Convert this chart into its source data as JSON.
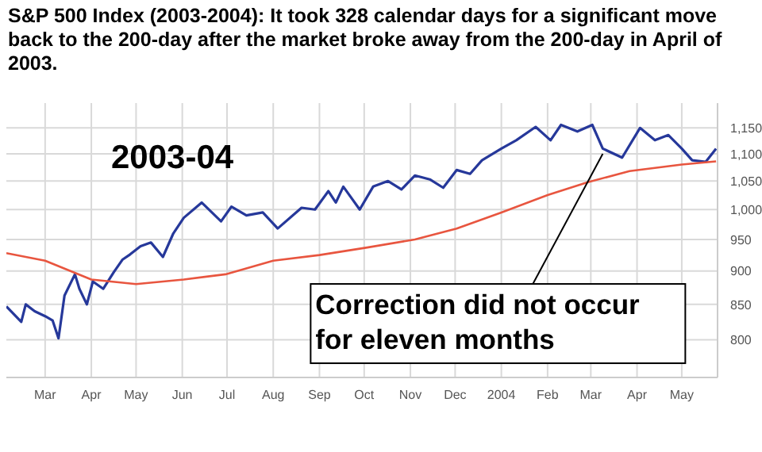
{
  "chart_data": {
    "type": "line",
    "title": "S&P 500 Index (2003-2004):  It took 328 calendar days for a significant move back to the 200-day after the market broke away from the 200-day in April of 2003.",
    "annotations": [
      "2003-04",
      {
        "text": "Correction did not occur for eleven months",
        "x": "2004-03-09",
        "y": 1100
      }
    ],
    "series": [
      {
        "color": "#26389a",
        "x": [
          "2003-02-03",
          "2003-02-13",
          "2003-02-16",
          "2003-02-22",
          "2003-03-01",
          "2003-03-06",
          "2003-03-10",
          "2003-03-14",
          "2003-03-21",
          "2003-03-24",
          "2003-03-29",
          "2003-04-02",
          "2003-04-09",
          "2003-04-16",
          "2003-04-22",
          "2003-04-27",
          "2003-05-04",
          "2003-05-11",
          "2003-05-19",
          "2003-05-26",
          "2003-06-02",
          "2003-06-14",
          "2003-06-27",
          "2003-07-04",
          "2003-07-14",
          "2003-07-25",
          "2003-08-04",
          "2003-08-20",
          "2003-08-29",
          "2003-09-07",
          "2003-09-12",
          "2003-09-17",
          "2003-09-28",
          "2003-10-07",
          "2003-10-17",
          "2003-10-26",
          "2003-11-04",
          "2003-11-14",
          "2003-11-23",
          "2003-12-02",
          "2003-12-11",
          "2003-12-19",
          "2004-01-01",
          "2004-01-11",
          "2004-01-24",
          "2004-02-03",
          "2004-02-10",
          "2004-02-21",
          "2004-03-02",
          "2004-03-09",
          "2004-03-22",
          "2004-04-03",
          "2004-04-13",
          "2004-04-22",
          "2004-05-01",
          "2004-05-08",
          "2004-05-17",
          "2004-05-24"
        ],
        "values": [
          847,
          825,
          850,
          840,
          833,
          827,
          802,
          863,
          895,
          873,
          850,
          884,
          873,
          898,
          918,
          926,
          939,
          945,
          922,
          960,
          986,
          1012,
          980,
          1005,
          990,
          995,
          968,
          1003,
          1000,
          1032,
          1012,
          1040,
          1000,
          1040,
          1050,
          1035,
          1060,
          1053,
          1038,
          1070,
          1063,
          1088,
          1110,
          1126,
          1152,
          1126,
          1156,
          1143,
          1156,
          1110,
          1093,
          1150,
          1126,
          1136,
          1110,
          1088,
          1085,
          1110
        ]
      },
      {
        "color": "#e8553f",
        "x": [
          "2003-02-03",
          "2003-03-01",
          "2003-04-01",
          "2003-05-01",
          "2003-06-02",
          "2003-06-30",
          "2003-08-01",
          "2003-09-01",
          "2003-10-03",
          "2003-11-04",
          "2003-12-02",
          "2004-01-01",
          "2004-02-01",
          "2004-02-28",
          "2004-03-27",
          "2004-05-01",
          "2004-05-24"
        ],
        "values": [
          928,
          916,
          887,
          880,
          887,
          895,
          916,
          925,
          937,
          950,
          968,
          995,
          1025,
          1048,
          1068,
          1080,
          1086
        ]
      }
    ],
    "xlim": [
      "2003-02-03",
      "2004-05-25"
    ],
    "xticks": [
      {
        "value": "2003-03-01",
        "label": "Mar"
      },
      {
        "value": "2003-04-01",
        "label": "Apr"
      },
      {
        "value": "2003-05-01",
        "label": "May"
      },
      {
        "value": "2003-06-01",
        "label": "Jun"
      },
      {
        "value": "2003-07-01",
        "label": "Jul"
      },
      {
        "value": "2003-08-01",
        "label": "Aug"
      },
      {
        "value": "2003-09-01",
        "label": "Sep"
      },
      {
        "value": "2003-10-01",
        "label": "Oct"
      },
      {
        "value": "2003-11-01",
        "label": "Nov"
      },
      {
        "value": "2003-12-01",
        "label": "Dec"
      },
      {
        "value": "2004-01-01",
        "label": "2004"
      },
      {
        "value": "2004-02-01",
        "label": "Feb"
      },
      {
        "value": "2004-03-01",
        "label": "Mar"
      },
      {
        "value": "2004-04-01",
        "label": "Apr"
      },
      {
        "value": "2004-05-01",
        "label": "May"
      }
    ],
    "ylim": [
      750,
      1200
    ],
    "yticks": [
      800,
      850,
      900,
      950,
      {
        "value": 1000,
        "label": "1,000"
      },
      {
        "value": 1050,
        "label": "1,050"
      },
      {
        "value": 1100,
        "label": "1,100"
      },
      {
        "value": 1150,
        "label": "1,150"
      }
    ],
    "log": "y",
    "grid": true
  }
}
